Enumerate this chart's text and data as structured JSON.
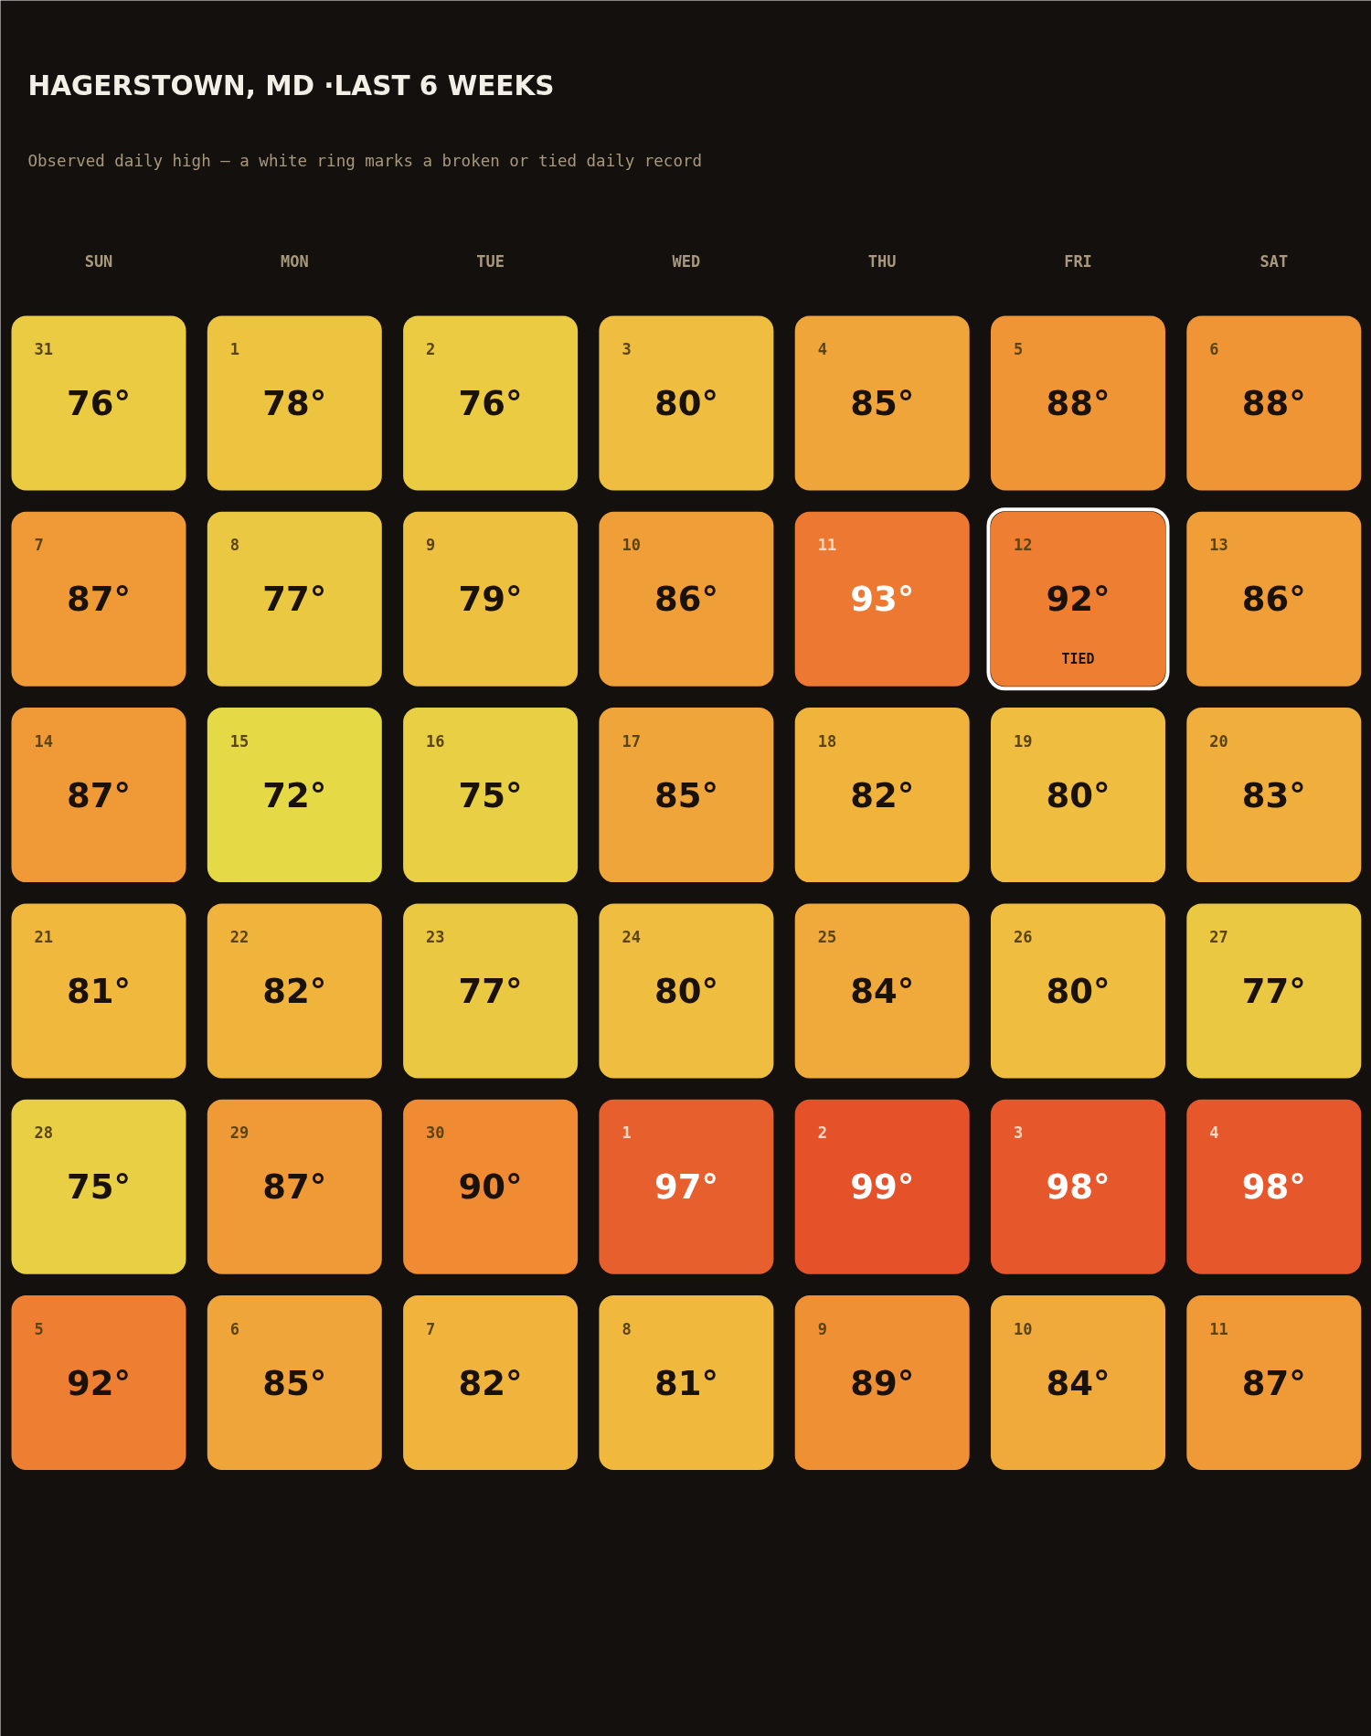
{
  "chart_data": {
    "type": "heatmap",
    "title": "HAGERSTOWN, MD ·LAST 6 WEEKS",
    "subtitle": "Observed daily high — a white ring marks a broken or tied daily record",
    "categories": [
      "SUN",
      "MON",
      "TUE",
      "WED",
      "THU",
      "FRI",
      "SAT"
    ],
    "y_categories": [
      null,
      null,
      null,
      null,
      null,
      null
    ],
    "cells": [
      [
        76,
        78,
        76,
        80,
        85,
        88,
        88
      ],
      [
        87,
        77,
        79,
        86,
        93,
        92,
        86
      ],
      [
        87,
        72,
        75,
        85,
        82,
        80,
        83
      ],
      [
        81,
        82,
        77,
        80,
        84,
        80,
        77
      ],
      [
        75,
        87,
        90,
        97,
        99,
        98,
        98
      ],
      [
        92,
        85,
        82,
        81,
        89,
        84,
        87
      ]
    ],
    "cell_labels": [
      [
        "76°",
        "78°",
        "76°",
        "80°",
        "85°",
        "88°",
        "88°"
      ],
      [
        "87°",
        "77°",
        "79°",
        "86°",
        "93°",
        "92°",
        "86°"
      ],
      [
        "87°",
        "72°",
        "75°",
        "85°",
        "82°",
        "80°",
        "83°"
      ],
      [
        "81°",
        "82°",
        "77°",
        "80°",
        "84°",
        "80°",
        "77°"
      ],
      [
        "75°",
        "87°",
        "90°",
        "97°",
        "99°",
        "98°",
        "98°"
      ],
      [
        "92°",
        "85°",
        "82°",
        "81°",
        "89°",
        "84°",
        "87°"
      ]
    ],
    "annotations": [
      "31",
      "1",
      "2",
      "3",
      "4",
      "5",
      "6",
      "7",
      "8",
      "9",
      "10",
      "11",
      "12",
      {
        "text": "TIED"
      },
      "13",
      "14",
      "15",
      "16",
      "17",
      "18",
      "19",
      "20",
      "21",
      "22",
      "23",
      "24",
      "25",
      "26",
      "27",
      "28",
      "29",
      "30",
      "1",
      "2",
      "3",
      "4",
      "5",
      "6",
      "7",
      "8",
      "9",
      "10",
      "11"
    ],
    "colors": [
      "#e5da45",
      "#f0b93e",
      "#f08b34",
      "#e5522a"
    ]
  }
}
